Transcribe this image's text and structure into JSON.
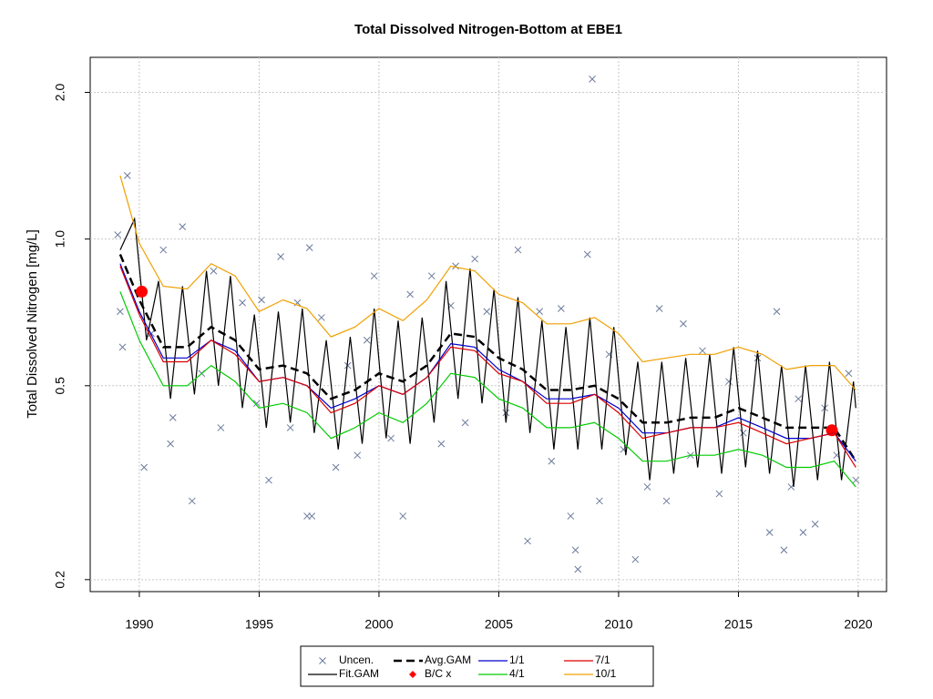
{
  "chart_data": {
    "type": "line",
    "title": "Total Dissolved Nitrogen-Bottom at EBE1",
    "y_label": "Total Dissolved Nitrogen [mg/L]",
    "ylog": true,
    "grid": true,
    "legend": "bottom",
    "xlim": [
      1987.95,
      2021.18
    ],
    "ylim": [
      0.189,
      2.36
    ],
    "xticks": [
      1990,
      1995,
      2000,
      2005,
      2010,
      2015,
      2020
    ],
    "yticks": [
      0.2,
      0.5,
      {
        "value": 1.0,
        "label": "1.0"
      },
      {
        "value": 2.0,
        "label": "2.0"
      }
    ],
    "x": [
      1989.2,
      1990,
      1991,
      1992,
      1993,
      1994,
      1995,
      1996,
      1997,
      1998,
      1999,
      2000,
      2001,
      2002,
      2003,
      2004,
      2005,
      2006,
      2007,
      2008,
      2009,
      2010,
      2011,
      2012,
      2013,
      2014,
      2015,
      2016,
      2017,
      2018,
      2019,
      2019.9
    ],
    "series": [
      {
        "name": "Uncen.",
        "color": "#6b7a9c",
        "style": "cross",
        "x": [
          1989.1,
          1989.2,
          1989.3,
          1989.5,
          1990.2,
          1990.5,
          1991.0,
          1991.3,
          1991.4,
          1991.8,
          1992.2,
          1992.6,
          1993.1,
          1993.4,
          1994.3,
          1994.9,
          1995.1,
          1995.4,
          1995.9,
          1996.3,
          1996.6,
          1997.0,
          1997.1,
          1997.2,
          1997.6,
          1998.2,
          1998.7,
          1999.1,
          1999.5,
          1999.8,
          2000.5,
          2001.0,
          2001.3,
          2002.2,
          2002.6,
          2003.0,
          2003.2,
          2003.6,
          2004.0,
          2004.5,
          2005.3,
          2005.8,
          2006.2,
          2006.7,
          2007.2,
          2007.6,
          2008.0,
          2008.2,
          2008.3,
          2008.7,
          2008.9,
          2009.2,
          2009.6,
          2010.2,
          2010.7,
          2011.2,
          2011.7,
          2012.0,
          2012.7,
          2013.0,
          2013.5,
          2014.2,
          2014.6,
          2015.2,
          2015.8,
          2016.3,
          2016.6,
          2016.9,
          2017.2,
          2017.5,
          2017.7,
          2018.2,
          2018.6,
          2019.1,
          2019.6,
          2019.9
        ],
        "values": [
          1.02,
          0.71,
          0.6,
          1.35,
          0.34,
          0.64,
          0.95,
          0.38,
          0.43,
          1.06,
          0.29,
          0.53,
          0.86,
          0.41,
          0.74,
          0.46,
          0.75,
          0.32,
          0.92,
          0.41,
          0.74,
          0.27,
          0.96,
          0.27,
          0.69,
          0.34,
          0.55,
          0.36,
          0.62,
          0.84,
          0.39,
          0.27,
          0.77,
          0.84,
          0.38,
          0.73,
          0.88,
          0.42,
          0.91,
          0.71,
          0.44,
          0.95,
          0.24,
          0.71,
          0.35,
          0.72,
          0.27,
          0.23,
          0.21,
          0.93,
          2.13,
          0.29,
          0.58,
          0.37,
          0.22,
          0.31,
          0.72,
          0.29,
          0.67,
          0.36,
          0.59,
          0.3,
          0.51,
          0.4,
          0.57,
          0.25,
          0.71,
          0.23,
          0.31,
          0.47,
          0.25,
          0.26,
          0.45,
          0.36,
          0.53,
          0.32
        ]
      },
      {
        "name": "Fit.GAM",
        "color": "#000000",
        "style": "line",
        "x": [
          1989.2,
          1989.8,
          1990.3,
          1990.8,
          1991.3,
          1991.8,
          1992.3,
          1992.8,
          1993.3,
          1993.8,
          1994.3,
          1994.8,
          1995.3,
          1995.8,
          1996.3,
          1996.8,
          1997.3,
          1997.8,
          1998.3,
          1998.8,
          1999.3,
          1999.8,
          2000.3,
          2000.8,
          2001.3,
          2001.8,
          2002.3,
          2002.8,
          2003.3,
          2003.8,
          2004.3,
          2004.8,
          2005.3,
          2005.8,
          2006.3,
          2006.8,
          2007.3,
          2007.8,
          2008.3,
          2008.8,
          2009.3,
          2009.8,
          2010.3,
          2010.8,
          2011.3,
          2011.8,
          2012.3,
          2012.8,
          2013.3,
          2013.8,
          2014.3,
          2014.8,
          2015.3,
          2015.8,
          2016.3,
          2016.8,
          2017.3,
          2017.8,
          2018.3,
          2018.8,
          2019.3,
          2019.8,
          2019.9
        ],
        "values": [
          0.95,
          1.1,
          0.62,
          0.82,
          0.47,
          0.8,
          0.48,
          0.86,
          0.5,
          0.84,
          0.45,
          0.7,
          0.41,
          0.71,
          0.42,
          0.72,
          0.4,
          0.62,
          0.37,
          0.63,
          0.38,
          0.72,
          0.39,
          0.68,
          0.38,
          0.69,
          0.42,
          0.82,
          0.47,
          0.87,
          0.46,
          0.79,
          0.42,
          0.76,
          0.4,
          0.68,
          0.37,
          0.66,
          0.37,
          0.69,
          0.37,
          0.66,
          0.36,
          0.56,
          0.32,
          0.56,
          0.33,
          0.57,
          0.34,
          0.58,
          0.33,
          0.6,
          0.34,
          0.59,
          0.33,
          0.55,
          0.31,
          0.55,
          0.32,
          0.56,
          0.32,
          0.51,
          0.45
        ]
      },
      {
        "name": "Avg.GAM",
        "color": "#000000",
        "style": "dashed",
        "values": [
          0.93,
          0.75,
          0.6,
          0.6,
          0.66,
          0.62,
          0.54,
          0.55,
          0.53,
          0.47,
          0.49,
          0.53,
          0.51,
          0.55,
          0.64,
          0.63,
          0.57,
          0.54,
          0.49,
          0.49,
          0.5,
          0.47,
          0.42,
          0.42,
          0.43,
          0.43,
          0.45,
          0.43,
          0.41,
          0.41,
          0.41,
          0.35
        ]
      },
      {
        "name": "B/C x",
        "color": "#ff0000",
        "style": "dot",
        "x": [
          1990.1,
          2018.9
        ],
        "values": [
          0.78,
          0.405
        ]
      },
      {
        "name": "1/1",
        "color": "#0000cd",
        "style": "line",
        "values": [
          0.89,
          0.71,
          0.57,
          0.57,
          0.62,
          0.59,
          0.51,
          0.52,
          0.5,
          0.45,
          0.47,
          0.5,
          0.48,
          0.52,
          0.61,
          0.6,
          0.54,
          0.51,
          0.47,
          0.47,
          0.48,
          0.45,
          0.4,
          0.4,
          0.41,
          0.41,
          0.43,
          0.41,
          0.39,
          0.39,
          0.4,
          0.35
        ]
      },
      {
        "name": "4/1",
        "color": "#00cc00",
        "style": "line",
        "values": [
          0.78,
          0.62,
          0.5,
          0.5,
          0.55,
          0.51,
          0.45,
          0.46,
          0.44,
          0.39,
          0.41,
          0.44,
          0.42,
          0.46,
          0.53,
          0.52,
          0.47,
          0.45,
          0.41,
          0.41,
          0.42,
          0.39,
          0.35,
          0.35,
          0.36,
          0.36,
          0.37,
          0.36,
          0.34,
          0.34,
          0.35,
          0.31
        ]
      },
      {
        "name": "7/1",
        "color": "#dd0000",
        "style": "line",
        "values": [
          0.88,
          0.7,
          0.56,
          0.56,
          0.62,
          0.58,
          0.51,
          0.52,
          0.5,
          0.44,
          0.46,
          0.5,
          0.48,
          0.52,
          0.6,
          0.59,
          0.53,
          0.51,
          0.46,
          0.46,
          0.48,
          0.44,
          0.39,
          0.4,
          0.41,
          0.41,
          0.42,
          0.4,
          0.38,
          0.39,
          0.4,
          0.34
        ]
      },
      {
        "name": "10/1",
        "color": "#f0a000",
        "style": "line",
        "values": [
          1.35,
          0.98,
          0.8,
          0.79,
          0.89,
          0.84,
          0.71,
          0.75,
          0.72,
          0.63,
          0.66,
          0.72,
          0.68,
          0.75,
          0.88,
          0.86,
          0.77,
          0.74,
          0.67,
          0.67,
          0.69,
          0.64,
          0.56,
          0.57,
          0.58,
          0.58,
          0.6,
          0.58,
          0.54,
          0.55,
          0.55,
          0.49
        ]
      }
    ]
  }
}
